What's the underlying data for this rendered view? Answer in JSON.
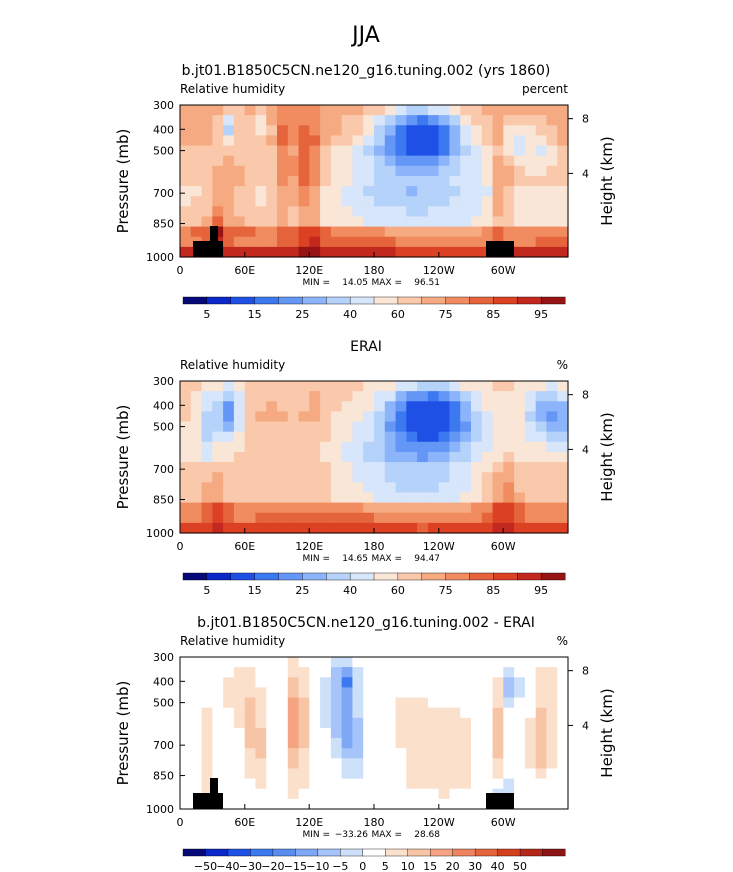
{
  "figure_title": "JJA",
  "chart_data": [
    {
      "type": "heatmap",
      "title": "b.jt01.B1850C5CN.ne120_g16.tuning.002 (yrs 1860)",
      "left_label": "Relative humidity",
      "right_label": "percent",
      "ylabel": "Pressure (mb)",
      "ylabel_right": "Height (km)",
      "yticks": [
        "300",
        "400",
        "500",
        "700",
        "850",
        "1000"
      ],
      "yticks_right": [
        "8",
        "4"
      ],
      "xticks": [
        "0",
        "60E",
        "120E",
        "180",
        "120W",
        "60W"
      ],
      "stats": {
        "min_label": "MIN =",
        "min": "14.05",
        "max_label": "MAX =",
        "max": "96.51"
      },
      "colorbar": {
        "colors": [
          "#050a78",
          "#0a28c8",
          "#1e50e6",
          "#3c78f0",
          "#6496f5",
          "#8cb4fa",
          "#b4d2fa",
          "#d7e6fa",
          "#fae6d7",
          "#fac8aa",
          "#f5aa82",
          "#f08c5f",
          "#e6643c",
          "#dc4123",
          "#c3281e",
          "#961414"
        ],
        "labels": [
          "5",
          "15",
          "25",
          "40",
          "60",
          "75",
          "85",
          "95"
        ],
        "label_slots": [
          1,
          3,
          5,
          7,
          9,
          11,
          13,
          15
        ],
        "min": 0,
        "max": 100
      },
      "field": {
        "x_range": [
          0,
          360
        ],
        "y_range": [
          0,
          1
        ],
        "grid": {
          "nx": 36,
          "ny": 15,
          "x0": 0,
          "x1": 360,
          "y0": 0,
          "y1": 1
        },
        "base": [
          [
            0,
            0.25,
            66
          ],
          [
            0.25,
            0.55,
            60
          ],
          [
            0.55,
            0.8,
            56
          ],
          [
            0.8,
            0.92,
            72
          ],
          [
            0.92,
            1,
            88
          ]
        ],
        "features": [
          [
            35,
            0.85,
            6,
            0.25,
            18
          ],
          [
            45,
            0.55,
            12,
            0.2,
            8
          ],
          [
            40,
            0.8,
            30,
            0.1,
            8
          ],
          [
            95,
            0.4,
            8,
            0.45,
            14
          ],
          [
            118,
            0.45,
            12,
            0.35,
            24
          ],
          [
            125,
            0.9,
            10,
            0.12,
            12
          ],
          [
            75,
            0.15,
            12,
            0.12,
            -12
          ],
          [
            45,
            0.15,
            10,
            0.12,
            -24
          ],
          [
            225,
            0.18,
            38,
            0.16,
            -48
          ],
          [
            215,
            0.35,
            60,
            0.25,
            -14
          ],
          [
            220,
            0.6,
            75,
            0.3,
            -12
          ],
          [
            298,
            0.55,
            8,
            0.35,
            16
          ],
          [
            312,
            0.2,
            12,
            0.12,
            -16
          ],
          [
            335,
            0.25,
            14,
            0.18,
            -10
          ],
          [
            180,
            0.9,
            60,
            0.06,
            8
          ],
          [
            340,
            0.9,
            20,
            0.08,
            6
          ]
        ],
        "min": 14.05,
        "max": 96.51
      },
      "topography": true
    },
    {
      "type": "heatmap",
      "title": "ERAI",
      "left_label": "Relative humidity",
      "right_label": "%",
      "ylabel": "Pressure (mb)",
      "ylabel_right": "Height (km)",
      "yticks": [
        "300",
        "400",
        "500",
        "700",
        "850",
        "1000"
      ],
      "yticks_right": [
        "8",
        "4"
      ],
      "xticks": [
        "0",
        "60E",
        "120E",
        "180",
        "120W",
        "60W"
      ],
      "stats": {
        "min_label": "MIN =",
        "min": "14.65",
        "max_label": "MAX =",
        "max": "94.47"
      },
      "colorbar": {
        "colors": [
          "#050a78",
          "#0a28c8",
          "#1e50e6",
          "#3c78f0",
          "#6496f5",
          "#8cb4fa",
          "#b4d2fa",
          "#d7e6fa",
          "#fae6d7",
          "#fac8aa",
          "#f5aa82",
          "#f08c5f",
          "#e6643c",
          "#dc4123",
          "#c3281e",
          "#961414"
        ],
        "labels": [
          "5",
          "15",
          "25",
          "40",
          "60",
          "75",
          "85",
          "95"
        ],
        "label_slots": [
          1,
          3,
          5,
          7,
          9,
          11,
          13,
          15
        ],
        "min": 0,
        "max": 100
      },
      "field": {
        "x_range": [
          0,
          360
        ],
        "y_range": [
          0,
          1
        ],
        "grid": {
          "nx": 36,
          "ny": 15,
          "x0": 0,
          "x1": 360,
          "y0": 0,
          "y1": 1
        },
        "base": [
          [
            0,
            0.25,
            58
          ],
          [
            0.25,
            0.55,
            56
          ],
          [
            0.55,
            0.8,
            60
          ],
          [
            0.8,
            0.92,
            74
          ],
          [
            0.92,
            1,
            84
          ]
        ],
        "features": [
          [
            45,
            0.2,
            12,
            0.16,
            -30
          ],
          [
            25,
            0.3,
            10,
            0.25,
            -14
          ],
          [
            85,
            0.3,
            30,
            0.3,
            6
          ],
          [
            125,
            0.3,
            12,
            0.35,
            6
          ],
          [
            232,
            0.22,
            35,
            0.17,
            -46
          ],
          [
            222,
            0.4,
            58,
            0.28,
            -18
          ],
          [
            215,
            0.7,
            70,
            0.25,
            -12
          ],
          [
            340,
            0.2,
            22,
            0.16,
            -22
          ],
          [
            355,
            0.3,
            18,
            0.2,
            -12
          ],
          [
            30,
            0.75,
            6,
            0.2,
            12
          ],
          [
            35,
            0.88,
            8,
            0.1,
            10
          ],
          [
            300,
            0.75,
            14,
            0.25,
            14
          ],
          [
            180,
            0.9,
            80,
            0.06,
            6
          ]
        ],
        "min": 14.65,
        "max": 94.47
      },
      "topography": false
    },
    {
      "type": "heatmap",
      "title": "b.jt01.B1850C5CN.ne120_g16.tuning.002 - ERAI",
      "left_label": "Relative humidity",
      "right_label": "%",
      "ylabel": "Pressure (mb)",
      "ylabel_right": "Height (km)",
      "yticks": [
        "300",
        "400",
        "500",
        "700",
        "850",
        "1000"
      ],
      "yticks_right": [
        "8",
        "4"
      ],
      "xticks": [
        "0",
        "60E",
        "120E",
        "180",
        "120W",
        "60W"
      ],
      "stats": {
        "min_label": "MIN =",
        "min": "−33.26",
        "max_label": "MAX =",
        "max": "28.68"
      },
      "colorbar": {
        "colors": [
          "#050a78",
          "#0a28c8",
          "#1e50e6",
          "#3c78f0",
          "#5a8cf0",
          "#7ea8f5",
          "#a6c4fa",
          "#cde0fa",
          "#ffffff",
          "#fbe0cc",
          "#f8c4a6",
          "#f4a482",
          "#ee8460",
          "#e6643c",
          "#d2401e",
          "#b4281a",
          "#8c1414"
        ],
        "labels": [
          "−50",
          "−40",
          "−30",
          "−20",
          "−15",
          "−10",
          "−5",
          "0",
          "5",
          "10",
          "15",
          "20",
          "30",
          "40",
          "50"
        ],
        "label_slots": [
          1,
          2,
          3,
          4,
          5,
          6,
          7,
          8,
          9,
          10,
          11,
          12,
          13,
          14,
          15
        ],
        "min": -55,
        "max": 55
      },
      "field": {
        "x_range": [
          0,
          360
        ],
        "y_range": [
          0,
          1
        ],
        "grid": {
          "nx": 36,
          "ny": 15,
          "x0": 0,
          "x1": 360,
          "y0": 0,
          "y1": 1
        },
        "base": [
          [
            0,
            1,
            0
          ]
        ],
        "features": [
          [
            65,
            0.35,
            10,
            0.25,
            10
          ],
          [
            72,
            0.6,
            10,
            0.25,
            10
          ],
          [
            28,
            0.65,
            6,
            0.3,
            12
          ],
          [
            50,
            0.2,
            10,
            0.12,
            8
          ],
          [
            108,
            0.45,
            9,
            0.35,
            22
          ],
          [
            150,
            0.3,
            14,
            0.28,
            -16
          ],
          [
            160,
            0.55,
            10,
            0.2,
            -14
          ],
          [
            155,
            0.15,
            8,
            0.08,
            -20
          ],
          [
            210,
            0.4,
            30,
            0.35,
            4
          ],
          [
            250,
            0.6,
            25,
            0.25,
            8
          ],
          [
            235,
            0.8,
            30,
            0.1,
            4
          ],
          [
            295,
            0.5,
            6,
            0.3,
            14
          ],
          [
            308,
            0.2,
            6,
            0.1,
            -18
          ],
          [
            335,
            0.55,
            10,
            0.22,
            16
          ],
          [
            340,
            0.2,
            8,
            0.15,
            10
          ],
          [
            300,
            0.88,
            8,
            0.1,
            -10
          ]
        ],
        "min": -33.26,
        "max": 28.68
      },
      "topography": true
    }
  ]
}
